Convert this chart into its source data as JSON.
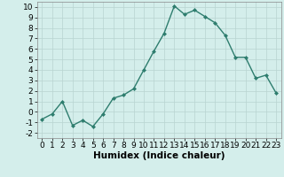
{
  "x": [
    0,
    1,
    2,
    3,
    4,
    5,
    6,
    7,
    8,
    9,
    10,
    11,
    12,
    13,
    14,
    15,
    16,
    17,
    18,
    19,
    20,
    21,
    22,
    23
  ],
  "y": [
    -0.7,
    -0.2,
    1.0,
    -1.3,
    -0.8,
    -1.4,
    -0.2,
    1.3,
    1.6,
    2.2,
    4.0,
    5.8,
    7.5,
    10.1,
    9.3,
    9.7,
    9.1,
    8.5,
    7.3,
    5.2,
    5.2,
    3.2,
    3.5,
    1.8
  ],
  "line_color": "#2e7d6e",
  "marker": "D",
  "marker_size": 2,
  "linewidth": 1.0,
  "xlabel": "Humidex (Indice chaleur)",
  "xlabel_fontsize": 7.5,
  "xlim": [
    -0.5,
    23.5
  ],
  "ylim": [
    -2.5,
    10.5
  ],
  "yticks": [
    -2,
    -1,
    0,
    1,
    2,
    3,
    4,
    5,
    6,
    7,
    8,
    9,
    10
  ],
  "xticks": [
    0,
    1,
    2,
    3,
    4,
    5,
    6,
    7,
    8,
    9,
    10,
    11,
    12,
    13,
    14,
    15,
    16,
    17,
    18,
    19,
    20,
    21,
    22,
    23
  ],
  "grid_color": "#b8d4d0",
  "bg_color": "#d4eeeb",
  "tick_fontsize": 6.5
}
